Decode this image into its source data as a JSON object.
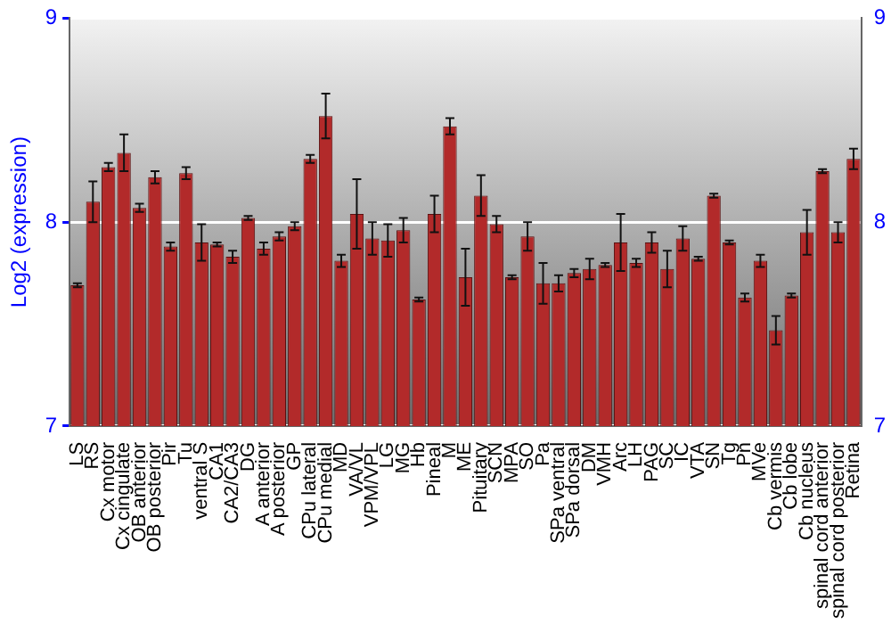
{
  "chart_data": {
    "type": "bar",
    "ylabel": "Log2 (expression)",
    "categories": [
      "LS",
      "RS",
      "Cx motor",
      "Cx cingulate",
      "OB anterior",
      "OB posterior",
      "Pir",
      "Tu",
      "ventral S",
      "CA1",
      "CA2/CA3",
      "DG",
      "A anterior",
      "A posterior",
      "GP",
      "CPu lateral",
      "CPu medial",
      "MD",
      "VA/VL",
      "VPM/VPL",
      "LG",
      "MG",
      "Hb",
      "Pineal",
      "M",
      "ME",
      "Pituitary",
      "SCN",
      "MPA",
      "SO",
      "Pa",
      "SPa ventral",
      "SPa dorsal",
      "DM",
      "VMH",
      "Arc",
      "LH",
      "PAG",
      "SC",
      "IC",
      "VTA",
      "SN",
      "Tg",
      "Pn",
      "MVe",
      "Cb vermis",
      "Cb lobe",
      "Cb nucleus",
      "spinal cord anterior",
      "spinal cord posterior",
      "Retina"
    ],
    "values": [
      7.69,
      8.1,
      8.27,
      8.34,
      8.07,
      8.22,
      7.88,
      8.24,
      7.9,
      7.89,
      7.83,
      8.02,
      7.87,
      7.93,
      7.98,
      8.31,
      8.52,
      7.81,
      8.04,
      7.92,
      7.91,
      7.96,
      7.62,
      8.04,
      8.47,
      7.73,
      8.13,
      7.99,
      7.73,
      7.93,
      7.7,
      7.7,
      7.75,
      7.77,
      7.79,
      7.9,
      7.8,
      7.9,
      7.77,
      7.92,
      7.82,
      8.13,
      7.9,
      7.63,
      7.81,
      7.47,
      7.64,
      7.95,
      8.25,
      7.95,
      8.31
    ],
    "errors": [
      0.01,
      0.1,
      0.02,
      0.09,
      0.02,
      0.03,
      0.02,
      0.03,
      0.09,
      0.01,
      0.03,
      0.01,
      0.03,
      0.02,
      0.02,
      0.02,
      0.11,
      0.03,
      0.17,
      0.08,
      0.08,
      0.06,
      0.01,
      0.09,
      0.04,
      0.14,
      0.1,
      0.04,
      0.01,
      0.07,
      0.1,
      0.04,
      0.02,
      0.05,
      0.01,
      0.14,
      0.02,
      0.05,
      0.09,
      0.06,
      0.01,
      0.01,
      0.01,
      0.02,
      0.03,
      0.07,
      0.01,
      0.11,
      0.01,
      0.05,
      0.05
    ],
    "color": "#b22a2a",
    "ylim": [
      7,
      9
    ],
    "yticks": [
      7,
      8,
      9
    ],
    "y2lim": [
      7,
      9
    ],
    "y2ticks": [
      7,
      8,
      9
    ],
    "grid": "y",
    "legend": false
  }
}
